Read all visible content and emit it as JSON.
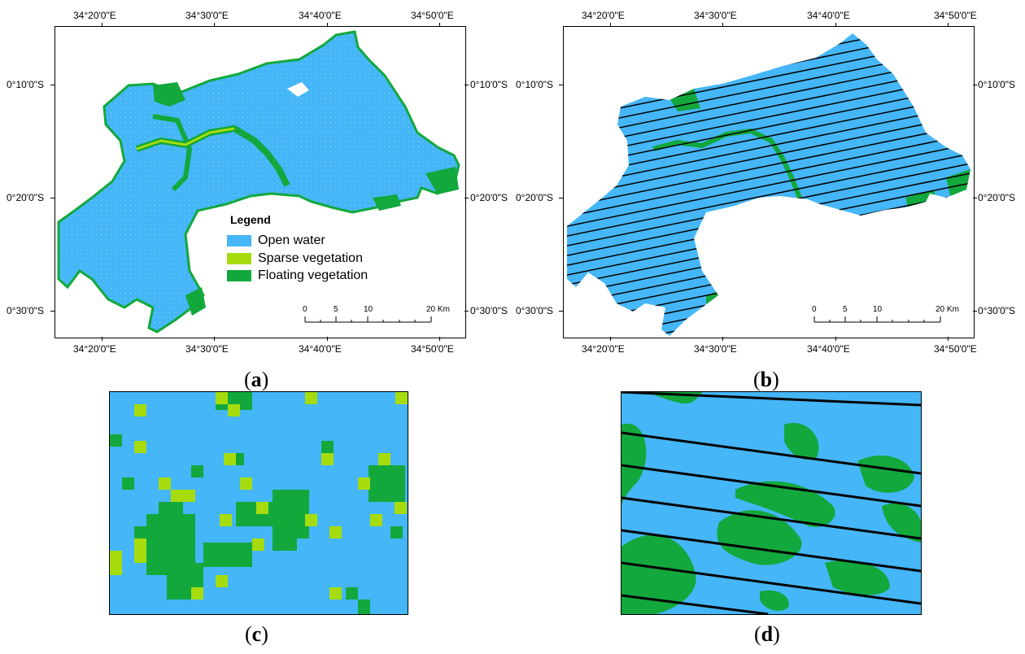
{
  "colors": {
    "open_water": "#45b6f7",
    "sparse_vegetation": "#a6dc0e",
    "floating_vegetation": "#12a83c",
    "stripe": "#000000"
  },
  "panel_a": {
    "label_open": "(",
    "label_letter": "a",
    "label_close": ")",
    "top_lon": [
      "34°20'0\"E",
      "34°30'0\"E",
      "34°40'0\"E",
      "34°50'0\"E"
    ],
    "bottom_lon": [
      "34°20'0\"E",
      "34°30'0\"E",
      "34°40'0\"E",
      "34°50'0\"E"
    ],
    "left_lat": [
      "0°10'0\"S",
      "0°20'0\"S",
      "0°30'0\"S"
    ],
    "right_lat": [
      "0°10'0\"S",
      "0°20'0\"S",
      "0°30'0\"S"
    ],
    "legend": {
      "title": "Legend",
      "items": [
        "Open water",
        "Sparse vegetation",
        "Floating vegetation"
      ]
    },
    "scale": {
      "ticks": [
        "0",
        "5",
        "10",
        "20 Km"
      ]
    }
  },
  "panel_b": {
    "label_open": "(",
    "label_letter": "b",
    "label_close": ")",
    "top_lon": [
      "34°20'0\"E",
      "34°30'0\"E",
      "34°40'0\"E",
      "34°50'0\"E"
    ],
    "bottom_lon": [
      "34°20'0\"E",
      "34°30'0\"E",
      "34°40'0\"E",
      "34°50'0\"E"
    ],
    "left_lat": [
      "0°10'0\"S",
      "0°20'0\"S",
      "0°30'0\"S"
    ],
    "right_lat": [
      "0°10'0\"S",
      "0°20'0\"S",
      "0°30'0\"S"
    ],
    "scale": {
      "ticks": [
        "0",
        "5",
        "10",
        "20 Km"
      ]
    }
  },
  "panel_c": {
    "label_open": "(",
    "label_letter": "c",
    "label_close": ")"
  },
  "panel_d": {
    "label_open": "(",
    "label_letter": "d",
    "label_close": ")"
  }
}
